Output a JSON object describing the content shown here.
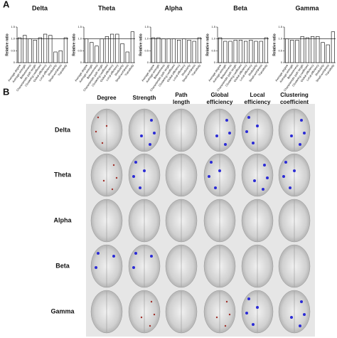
{
  "panels": [
    "A",
    "B"
  ],
  "chart_data": [
    {
      "type": "bar",
      "title": "Delta",
      "y_label": "Relative ratio",
      "categories": [
        "Average degree",
        "Average strength",
        "Betweenness",
        "Characteristic path length",
        "Clustering coefficient",
        "Global efficiency",
        "Local efficiency",
        "Modularity",
        "Small-worldness",
        "Transitivity"
      ],
      "values": [
        1.05,
        1.15,
        1.0,
        0.95,
        1.05,
        1.2,
        1.15,
        0.45,
        0.5,
        1.05
      ],
      "ylim": [
        0,
        1.5
      ],
      "yticks": [
        0,
        0.5,
        {
          "value": 1,
          "label": "1.0"
        },
        1.5
      ],
      "hline": 1,
      "color": "#ffffff"
    },
    {
      "type": "bar",
      "title": "Theta",
      "y_label": "Relative ratio",
      "categories": [
        "Average degree",
        "Average strength",
        "Betweenness",
        "Characteristic path length",
        "Clustering coefficient",
        "Global efficiency",
        "Local efficiency",
        "Modularity",
        "Small-worldness",
        "Transitivity"
      ],
      "values": [
        1.0,
        0.85,
        0.7,
        1.0,
        1.1,
        1.2,
        1.2,
        0.8,
        0.45,
        1.3
      ],
      "ylim": [
        0,
        1.5
      ],
      "yticks": [
        0,
        0.5,
        {
          "value": 1,
          "label": "1.0"
        },
        1.5
      ],
      "hline": 1,
      "color": "#ffffff"
    },
    {
      "type": "bar",
      "title": "Alpha",
      "y_label": "Relative ratio",
      "categories": [
        "Average degree",
        "Average strength",
        "Betweenness",
        "Characteristic path length",
        "Clustering coefficient",
        "Global efficiency",
        "Local efficiency",
        "Modularity",
        "Small-worldness",
        "Transitivity"
      ],
      "values": [
        1.05,
        1.05,
        1.0,
        1.0,
        1.0,
        0.95,
        1.0,
        0.95,
        0.9,
        1.05
      ],
      "ylim": [
        0,
        1.5
      ],
      "yticks": [
        0,
        0.5,
        {
          "value": 1,
          "label": "1.0"
        },
        1.5
      ],
      "hline": 1,
      "color": "#ffffff"
    },
    {
      "type": "bar",
      "title": "Beta",
      "y_label": "Relative ratio",
      "categories": [
        "Average degree",
        "Average strength",
        "Betweenness",
        "Characteristic path length",
        "Clustering coefficient",
        "Global efficiency",
        "Local efficiency",
        "Modularity",
        "Small-worldness",
        "Transitivity"
      ],
      "values": [
        1.05,
        0.9,
        0.9,
        0.95,
        0.95,
        0.9,
        0.95,
        0.9,
        0.9,
        1.05
      ],
      "ylim": [
        0,
        1.5
      ],
      "yticks": [
        0,
        0.5,
        {
          "value": 1,
          "label": "1.0"
        },
        1.5
      ],
      "hline": 1,
      "color": "#ffffff"
    },
    {
      "type": "bar",
      "title": "Gamma",
      "y_label": "Relative ratio",
      "categories": [
        "Average degree",
        "Average strength",
        "Betweenness",
        "Characteristic path length",
        "Clustering coefficient",
        "Global efficiency",
        "Local efficiency",
        "Modularity",
        "Small-worldness",
        "Transitivity"
      ],
      "values": [
        1.0,
        0.95,
        0.95,
        1.1,
        1.05,
        1.1,
        1.1,
        0.85,
        0.75,
        1.3
      ],
      "ylim": [
        0,
        1.5
      ],
      "yticks": [
        0,
        0.5,
        {
          "value": 1,
          "label": "1.0"
        },
        1.5
      ],
      "hline": 1,
      "color": "#ffffff"
    }
  ],
  "panel_b": {
    "columns": [
      "Degree",
      "Strength",
      "Path length",
      "Global efficiency",
      "Local efficiency",
      "Clustering coefficient"
    ],
    "rows": [
      "Delta",
      "Theta",
      "Alpha",
      "Beta",
      "Gamma"
    ]
  }
}
